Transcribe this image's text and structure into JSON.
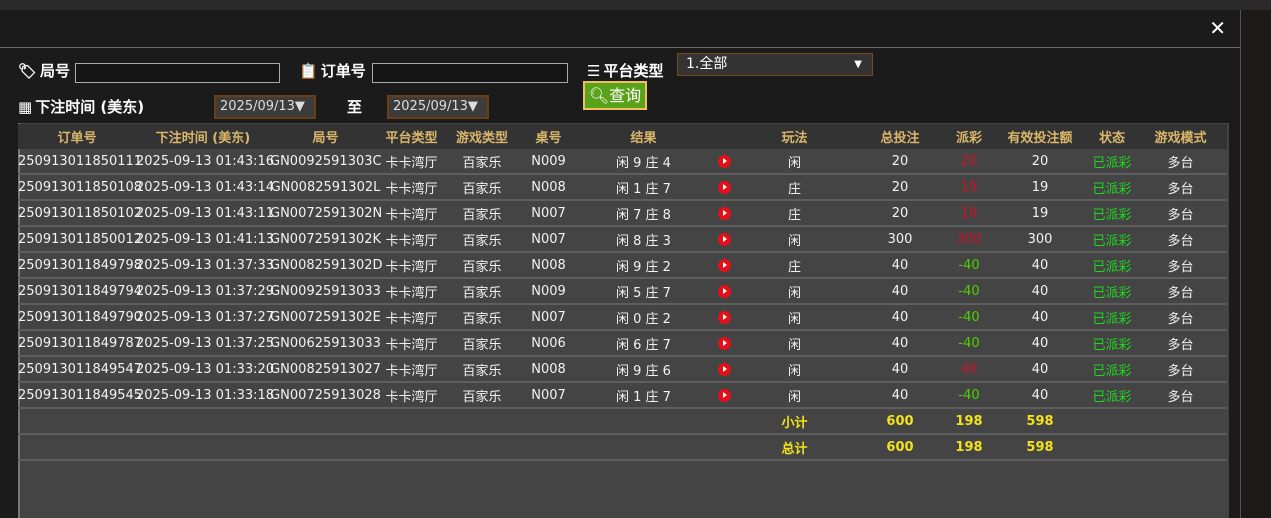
{
  "filters": {
    "round_label": "局号",
    "order_label": "订单号",
    "platform_label": "平台类型",
    "platform_value": "1.全部",
    "time_label": "下注时间 (美东)",
    "date_from": "2025/09/13▼",
    "to_label": "至",
    "date_to": "2025/09/13▼",
    "query_label": "查询"
  },
  "close": "✕",
  "columns": [
    "订单号",
    "下注时间 (美东)",
    "局号",
    "平台类型",
    "游戏类型",
    "桌号",
    "结果",
    "",
    "玩法",
    "总投注",
    "派彩",
    "有效投注额",
    "状态",
    "游戏模式"
  ],
  "rows": [
    [
      "250913011850111",
      "2025-09-13 01:43:16",
      "GN0092591303C",
      "卡卡湾厅",
      "百家乐",
      "N009",
      "闲 9 庄 4",
      "闲",
      "20",
      "20",
      "20",
      "已派彩",
      "多台",
      "red"
    ],
    [
      "250913011850108",
      "2025-09-13 01:43:14",
      "GN0082591302L",
      "卡卡湾厅",
      "百家乐",
      "N008",
      "闲 1 庄 7",
      "庄",
      "20",
      "19",
      "19",
      "已派彩",
      "多台",
      "red"
    ],
    [
      "250913011850102",
      "2025-09-13 01:43:11",
      "GN0072591302N",
      "卡卡湾厅",
      "百家乐",
      "N007",
      "闲 7 庄 8",
      "庄",
      "20",
      "19",
      "19",
      "已派彩",
      "多台",
      "red"
    ],
    [
      "250913011850012",
      "2025-09-13 01:41:13",
      "GN0072591302K",
      "卡卡湾厅",
      "百家乐",
      "N007",
      "闲 8 庄 3",
      "闲",
      "300",
      "300",
      "300",
      "已派彩",
      "多台",
      "red"
    ],
    [
      "250913011849798",
      "2025-09-13 01:37:33",
      "GN0082591302D",
      "卡卡湾厅",
      "百家乐",
      "N008",
      "闲 9 庄 2",
      "庄",
      "40",
      "-40",
      "40",
      "已派彩",
      "多台",
      "green"
    ],
    [
      "250913011849794",
      "2025-09-13 01:37:29",
      "GN00925913033",
      "卡卡湾厅",
      "百家乐",
      "N009",
      "闲 5 庄 7",
      "闲",
      "40",
      "-40",
      "40",
      "已派彩",
      "多台",
      "green"
    ],
    [
      "250913011849790",
      "2025-09-13 01:37:27",
      "GN0072591302E",
      "卡卡湾厅",
      "百家乐",
      "N007",
      "闲 0 庄 2",
      "闲",
      "40",
      "-40",
      "40",
      "已派彩",
      "多台",
      "green"
    ],
    [
      "250913011849787",
      "2025-09-13 01:37:25",
      "GN00625913033",
      "卡卡湾厅",
      "百家乐",
      "N006",
      "闲 6 庄 7",
      "闲",
      "40",
      "-40",
      "40",
      "已派彩",
      "多台",
      "green"
    ],
    [
      "250913011849547",
      "2025-09-13 01:33:20",
      "GN00825913027",
      "卡卡湾厅",
      "百家乐",
      "N008",
      "闲 9 庄 6",
      "闲",
      "40",
      "40",
      "40",
      "已派彩",
      "多台",
      "red"
    ],
    [
      "250913011849545",
      "2025-09-13 01:33:18",
      "GN00725913028",
      "卡卡湾厅",
      "百家乐",
      "N007",
      "闲 1 庄 7",
      "闲",
      "40",
      "-40",
      "40",
      "已派彩",
      "多台",
      "green"
    ]
  ],
  "subtotal": {
    "label": "小计",
    "bet": "600",
    "payout": "198",
    "valid": "598"
  },
  "total": {
    "label": "总计",
    "bet": "600",
    "payout": "198",
    "valid": "598"
  },
  "colors": {
    "accent": "#d9b66a",
    "win": "#d0102a",
    "loss": "#4cd000",
    "status": "#1fd81f",
    "totals": "#f2e21a"
  }
}
